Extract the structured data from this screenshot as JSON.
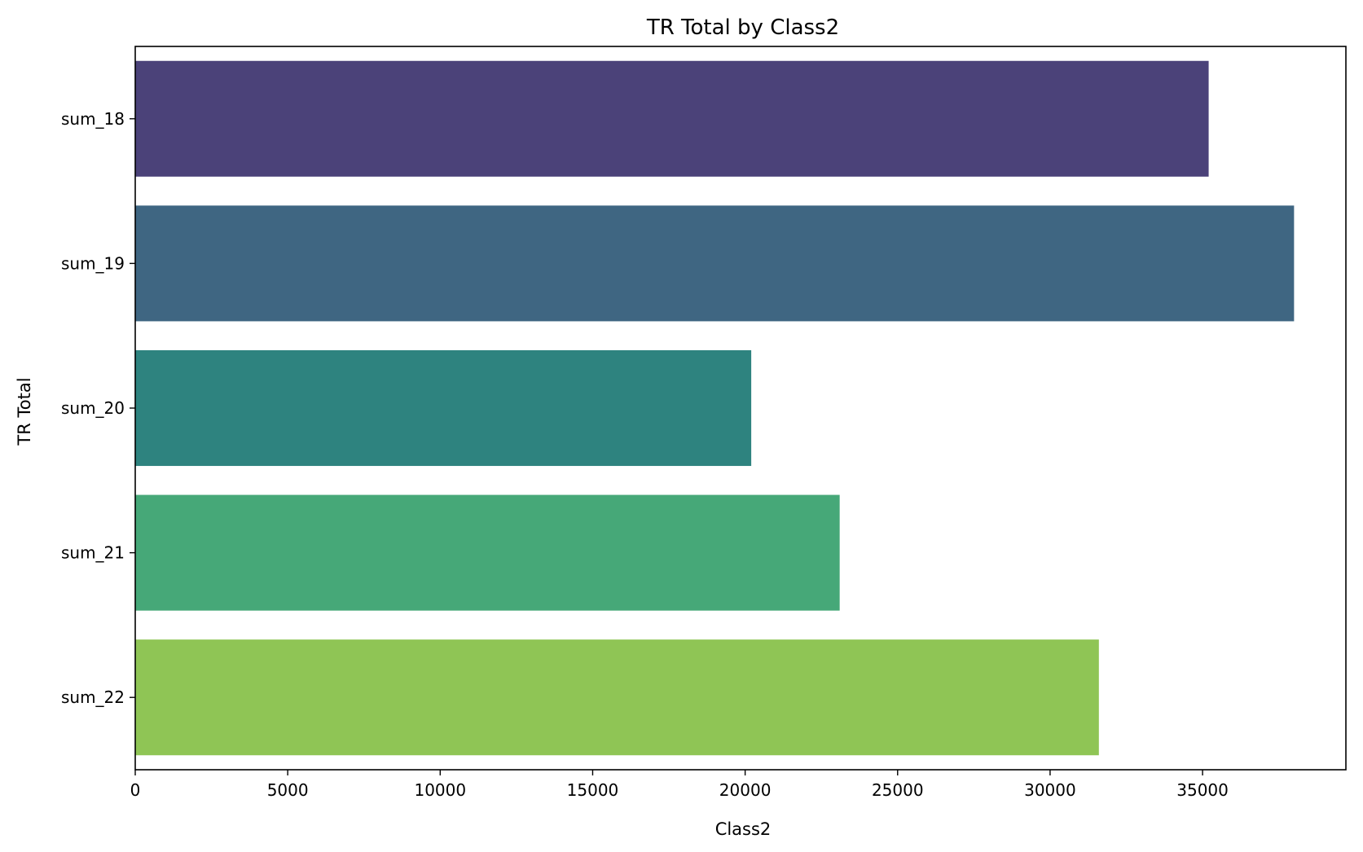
{
  "chart_data": {
    "type": "bar",
    "orientation": "horizontal",
    "title": "TR Total by Class2",
    "xlabel": "Class2",
    "ylabel": "TR Total",
    "categories": [
      "sum_18",
      "sum_19",
      "sum_20",
      "sum_21",
      "sum_22"
    ],
    "values": [
      35200,
      38000,
      20200,
      23100,
      31600
    ],
    "colors": [
      "#4b4279",
      "#3f6682",
      "#2e837f",
      "#46a878",
      "#8fc555"
    ],
    "xlim": [
      0,
      39700
    ],
    "xticks": [
      0,
      5000,
      10000,
      15000,
      20000,
      25000,
      30000,
      35000
    ],
    "grid": false,
    "legend": "none"
  }
}
